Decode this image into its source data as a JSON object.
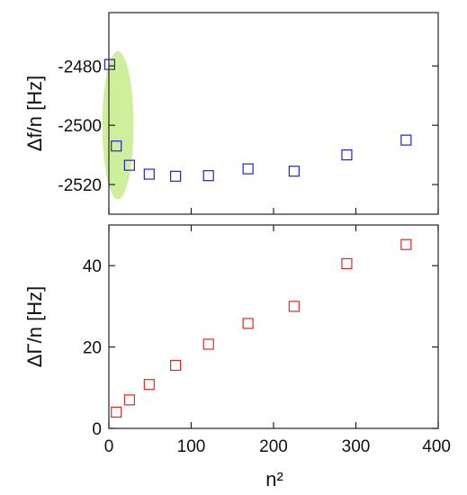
{
  "chart_data": [
    {
      "type": "scatter",
      "panel": "top",
      "title": "",
      "xlabel": "",
      "ylabel": "Δf/n [Hz]",
      "xlim": [
        0,
        400
      ],
      "ylim": [
        -2530,
        -2462
      ],
      "yticks": [
        -2480,
        -2500,
        -2520
      ],
      "ytick_labels": [
        "-2480",
        "-2500",
        "-2520"
      ],
      "grid": false,
      "marker": "open-square",
      "color": "#2323c8",
      "highlight": {
        "shape": "ellipse",
        "color": "#c8ec8c",
        "x_range": [
          -8,
          30
        ],
        "y_range": [
          -2525,
          -2475
        ]
      },
      "series": [
        {
          "x": [
            1,
            9,
            25,
            49,
            81,
            121,
            169,
            225,
            289,
            361
          ],
          "y": [
            -2479.5,
            -2507,
            -2513.5,
            -2516.5,
            -2517.2,
            -2517,
            -2514.7,
            -2515.5,
            -2510,
            -2505
          ]
        }
      ]
    },
    {
      "type": "scatter",
      "panel": "bottom",
      "title": "",
      "xlabel": "n²",
      "ylabel": "ΔΓ/n [Hz]",
      "xlim": [
        0,
        400
      ],
      "ylim": [
        0,
        50
      ],
      "xticks": [
        0,
        100,
        200,
        300,
        400
      ],
      "xtick_labels": [
        "0",
        "100",
        "200",
        "300",
        "400"
      ],
      "yticks": [
        0,
        20,
        40
      ],
      "ytick_labels": [
        "0",
        "20",
        "40"
      ],
      "grid": false,
      "marker": "open-square",
      "color": "#e02828",
      "series": [
        {
          "x": [
            9,
            25,
            49,
            81,
            121,
            169,
            225,
            289,
            361
          ],
          "y": [
            4,
            7,
            10.8,
            15.5,
            20.7,
            25.8,
            30,
            40.5,
            45.2
          ]
        }
      ]
    }
  ]
}
